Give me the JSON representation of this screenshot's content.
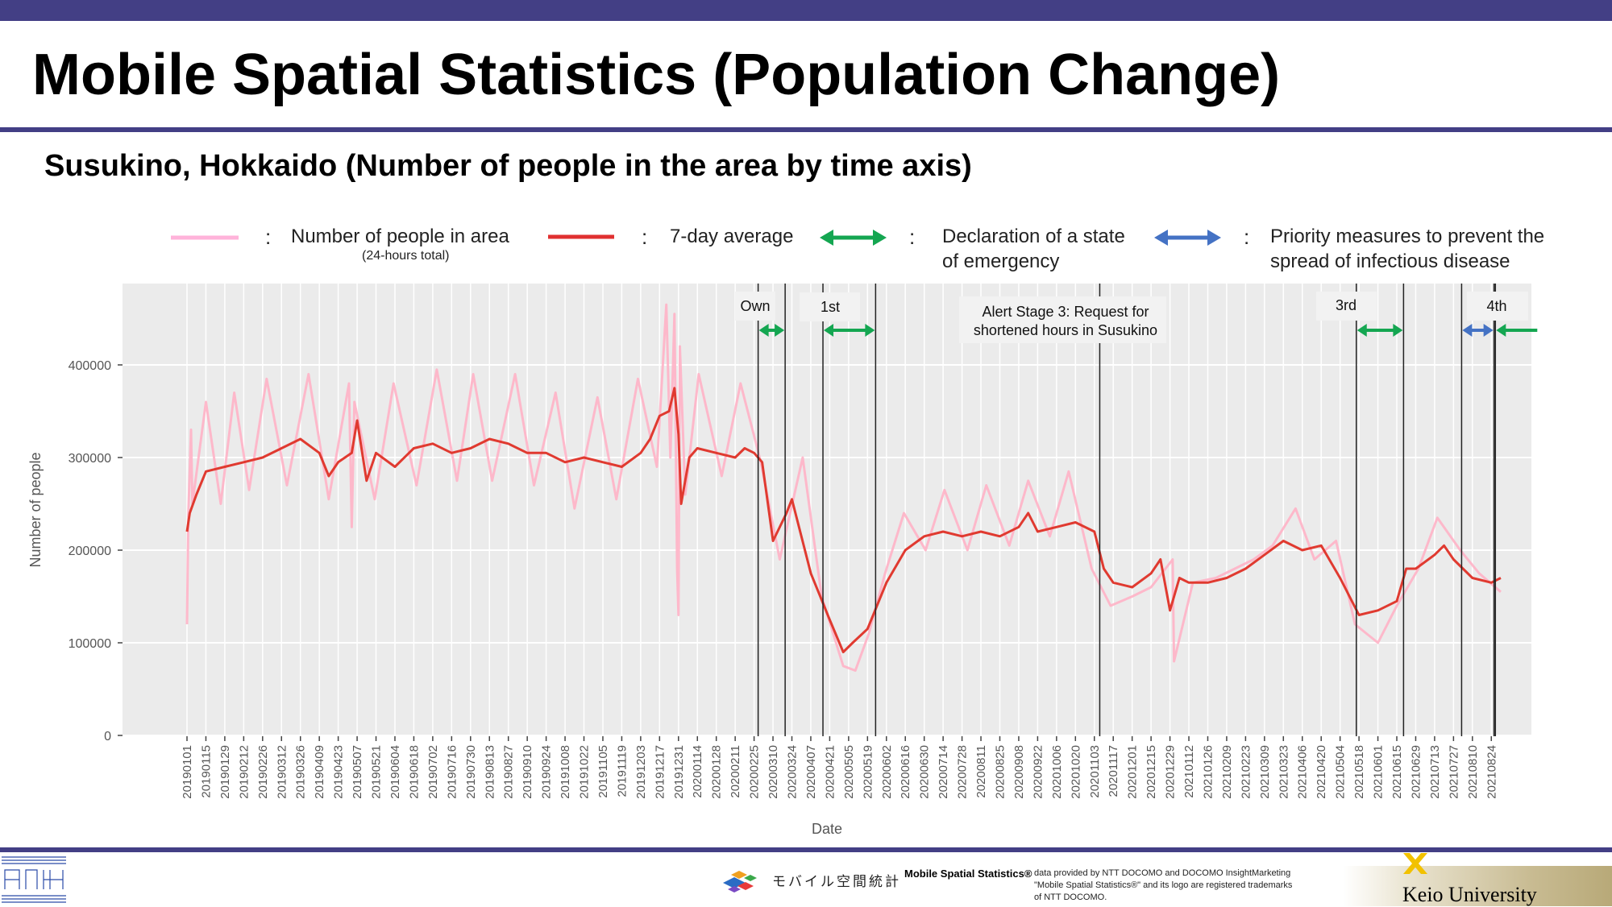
{
  "header": {
    "title": "Mobile Spatial Statistics (Population Change)",
    "subtitle": "Susukino, Hokkaido (Number of people in the area by time axis)"
  },
  "legend": {
    "separator": ":",
    "items": [
      {
        "label": "Number of people in area",
        "sublabel": "(24-hours total)",
        "color": "#ffb3da",
        "kind": "line"
      },
      {
        "label": "7-day average",
        "color": "#e03030",
        "kind": "line"
      },
      {
        "label_line1": "Declaration of a state",
        "label_line2": "of emergency",
        "color": "#14a651",
        "kind": "double-arrow"
      },
      {
        "label_line1": "Priority measures to prevent the",
        "label_line2": "spread of infectious disease",
        "color": "#4472c4",
        "kind": "double-arrow"
      }
    ]
  },
  "annotations": {
    "own": "Own",
    "first": "1st",
    "alert_line1": "Alert Stage 3: Request for",
    "alert_line2": "shortened hours in Susukino",
    "third": "3rd",
    "fourth": "4th"
  },
  "chart_data": {
    "type": "line",
    "xlabel": "Date",
    "ylabel": "Number of people",
    "ylim": [
      0,
      470000
    ],
    "yticks": [
      0,
      100000,
      200000,
      300000,
      400000
    ],
    "ytick_labels": [
      "0",
      "100000",
      "200000",
      "300000",
      "400000"
    ],
    "grid": true,
    "legend_position": "top",
    "x_tick_labels": [
      "20190101",
      "20190115",
      "20190129",
      "20190212",
      "20190226",
      "20190312",
      "20190326",
      "20190409",
      "20190423",
      "20190507",
      "20190521",
      "20190604",
      "20190618",
      "20190702",
      "20190716",
      "20190730",
      "20190813",
      "20190827",
      "20190910",
      "20190924",
      "20191008",
      "20191022",
      "20191105",
      "20191119",
      "20191203",
      "20191217",
      "20191231",
      "20200114",
      "20200128",
      "20200211",
      "20200225",
      "20200310",
      "20200324",
      "20200407",
      "20200421",
      "20200505",
      "20200519",
      "20200602",
      "20200616",
      "20200630",
      "20200714",
      "20200728",
      "20200811",
      "20200825",
      "20200908",
      "20200922",
      "20201006",
      "20201020",
      "20201103",
      "20201117",
      "20201201",
      "20201215",
      "20201229",
      "20210112",
      "20210126",
      "20210209",
      "20210223",
      "20210309",
      "20210323",
      "20210406",
      "20210420",
      "20210504",
      "20210518",
      "20210601",
      "20210615",
      "20210629",
      "20210713",
      "20210727",
      "20210810",
      "20210824"
    ],
    "series": [
      {
        "name": "Number of people in area",
        "color": "#ffb3c6",
        "x": [
          "20190101",
          "20190102",
          "20190104",
          "20190105",
          "20190115",
          "20190126",
          "20190205",
          "20190216",
          "20190301",
          "20190316",
          "20190401",
          "20190416",
          "20190501",
          "20190503",
          "20190505",
          "20190520",
          "20190603",
          "20190620",
          "20190705",
          "20190720",
          "20190801",
          "20190815",
          "20190901",
          "20190915",
          "20191001",
          "20191015",
          "20191101",
          "20191115",
          "20191201",
          "20191215",
          "20191222",
          "20191225",
          "20191228",
          "20191230",
          "20191231",
          "20200101",
          "20200105",
          "20200115",
          "20200201",
          "20200215",
          "20200301",
          "20200315",
          "20200401",
          "20200415",
          "20200501",
          "20200510",
          "20200520",
          "20200601",
          "20200615",
          "20200701",
          "20200715",
          "20200801",
          "20200815",
          "20200901",
          "20200915",
          "20201001",
          "20201015",
          "20201101",
          "20201115",
          "20201201",
          "20201215",
          "20201231",
          "20210101",
          "20210115",
          "20210201",
          "20210215",
          "20210301",
          "20210315",
          "20210401",
          "20210415",
          "20210501",
          "20210515",
          "20210601",
          "20210615",
          "20210701",
          "20210715",
          "20210801",
          "20210815",
          "20210831"
        ],
        "values": [
          120000,
          240000,
          330000,
          250000,
          360000,
          250000,
          370000,
          265000,
          385000,
          270000,
          390000,
          255000,
          380000,
          225000,
          360000,
          255000,
          380000,
          270000,
          395000,
          275000,
          390000,
          275000,
          390000,
          270000,
          370000,
          245000,
          365000,
          255000,
          385000,
          290000,
          465000,
          300000,
          455000,
          180000,
          130000,
          420000,
          260000,
          390000,
          280000,
          380000,
          295000,
          190000,
          300000,
          150000,
          75000,
          70000,
          110000,
          175000,
          240000,
          200000,
          265000,
          200000,
          270000,
          205000,
          275000,
          215000,
          285000,
          180000,
          140000,
          150000,
          160000,
          190000,
          80000,
          165000,
          170000,
          180000,
          190000,
          205000,
          245000,
          190000,
          210000,
          120000,
          100000,
          140000,
          180000,
          235000,
          200000,
          175000,
          155000
        ]
      },
      {
        "name": "7-day average",
        "color": "#e03a30",
        "x": [
          "20190101",
          "20190103",
          "20190108",
          "20190115",
          "20190129",
          "20190212",
          "20190226",
          "20190312",
          "20190326",
          "20190409",
          "20190416",
          "20190423",
          "20190503",
          "20190507",
          "20190514",
          "20190521",
          "20190604",
          "20190618",
          "20190702",
          "20190716",
          "20190730",
          "20190813",
          "20190827",
          "20190910",
          "20190924",
          "20191008",
          "20191022",
          "20191105",
          "20191119",
          "20191203",
          "20191210",
          "20191217",
          "20191224",
          "20191228",
          "20191231",
          "20200102",
          "20200108",
          "20200114",
          "20200128",
          "20200211",
          "20200218",
          "20200225",
          "20200302",
          "20200310",
          "20200320",
          "20200324",
          "20200407",
          "20200421",
          "20200501",
          "20200508",
          "20200519",
          "20200602",
          "20200616",
          "20200630",
          "20200714",
          "20200728",
          "20200811",
          "20200825",
          "20200908",
          "20200915",
          "20200922",
          "20201006",
          "20201020",
          "20201103",
          "20201110",
          "20201117",
          "20201201",
          "20201215",
          "20201222",
          "20201229",
          "20210105",
          "20210112",
          "20210126",
          "20210209",
          "20210223",
          "20210309",
          "20210323",
          "20210406",
          "20210420",
          "20210504",
          "20210518",
          "20210601",
          "20210615",
          "20210622",
          "20210629",
          "20210713",
          "20210720",
          "20210727",
          "20210810",
          "20210824",
          "20210831"
        ],
        "values": [
          220000,
          240000,
          260000,
          285000,
          290000,
          295000,
          300000,
          310000,
          320000,
          305000,
          280000,
          295000,
          305000,
          340000,
          275000,
          305000,
          290000,
          310000,
          315000,
          305000,
          310000,
          320000,
          315000,
          305000,
          305000,
          295000,
          300000,
          295000,
          290000,
          305000,
          320000,
          345000,
          350000,
          375000,
          325000,
          250000,
          300000,
          310000,
          305000,
          300000,
          310000,
          305000,
          295000,
          210000,
          240000,
          255000,
          175000,
          125000,
          90000,
          100000,
          115000,
          165000,
          200000,
          215000,
          220000,
          215000,
          220000,
          215000,
          225000,
          240000,
          220000,
          225000,
          230000,
          220000,
          180000,
          165000,
          160000,
          175000,
          190000,
          135000,
          170000,
          165000,
          165000,
          170000,
          180000,
          195000,
          210000,
          200000,
          205000,
          170000,
          130000,
          135000,
          145000,
          180000,
          180000,
          195000,
          205000,
          190000,
          170000,
          165000,
          170000
        ]
      }
    ],
    "periods": [
      {
        "label": "Own",
        "type": "Declaration of a state of emergency",
        "start": "20200228",
        "end": "20200319"
      },
      {
        "label": "1st",
        "type": "Declaration of a state of emergency",
        "start": "20200416",
        "end": "20200525"
      },
      {
        "label": "Alert Stage 3: Request for shortened hours in Susukino",
        "type": "event",
        "start": "20201107"
      },
      {
        "label": "3rd",
        "type": "Declaration of a state of emergency",
        "start": "20210516",
        "end": "20210620"
      },
      {
        "label": "4th",
        "type": "Priority measures to prevent the spread of infectious disease",
        "start": "20210802",
        "end": "20210826"
      },
      {
        "label": "4th",
        "type": "Declaration of a state of emergency",
        "start": "20210827"
      }
    ]
  }
}
